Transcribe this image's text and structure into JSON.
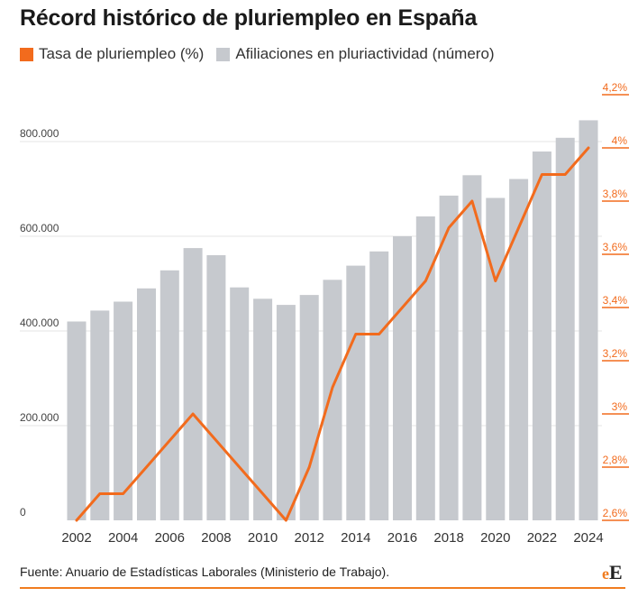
{
  "title": "Récord histórico de pluriempleo en España",
  "legend": {
    "rate_label": "Tasa de pluriempleo (%)",
    "count_label": "Afiliaciones en pluriactividad (número)"
  },
  "colors": {
    "line": "#f26b1d",
    "bar": "#c6c9ce",
    "grid": "#e6e6e6",
    "right_tick": "#f26b1d"
  },
  "source": "Fuente: Anuario de Estadísticas Laborales (Ministerio de Trabajo).",
  "logo": {
    "first": "e",
    "second": "E"
  },
  "chart_data": {
    "type": "bar+line",
    "title": "Récord histórico de pluriempleo en España",
    "x": [
      2002,
      2003,
      2004,
      2005,
      2006,
      2007,
      2008,
      2009,
      2010,
      2011,
      2012,
      2013,
      2014,
      2015,
      2016,
      2017,
      2018,
      2019,
      2020,
      2021,
      2022,
      2023,
      2024
    ],
    "x_tick_labels": [
      "2002",
      "2004",
      "2006",
      "2008",
      "2010",
      "2012",
      "2014",
      "2016",
      "2018",
      "2020",
      "2022",
      "2024"
    ],
    "series": [
      {
        "name": "Afiliaciones en pluriactividad (número)",
        "type": "bar",
        "axis": "left",
        "values": [
          420000,
          443000,
          462000,
          490000,
          528000,
          575000,
          560000,
          492000,
          468000,
          455000,
          476000,
          508000,
          538000,
          568000,
          600000,
          642000,
          686000,
          729000,
          681000,
          721000,
          779000,
          808000,
          845000
        ]
      },
      {
        "name": "Tasa de pluriempleo (%)",
        "type": "line",
        "axis": "right",
        "values": [
          2.6,
          2.7,
          2.7,
          2.8,
          2.9,
          3.0,
          2.9,
          2.8,
          2.7,
          2.6,
          2.8,
          3.1,
          3.3,
          3.3,
          3.4,
          3.5,
          3.7,
          3.8,
          3.5,
          3.7,
          3.9,
          3.9,
          4.0
        ]
      }
    ],
    "y_left": {
      "min": 0,
      "max": 900000,
      "ticks": [
        0,
        200000,
        400000,
        600000,
        800000
      ],
      "tick_labels": [
        "0",
        "200.000",
        "400.000",
        "600.000",
        "800.000"
      ]
    },
    "y_right": {
      "min": 2.6,
      "max": 4.2,
      "ticks": [
        2.6,
        2.8,
        3.0,
        3.2,
        3.4,
        3.6,
        3.8,
        4.0,
        4.2
      ],
      "tick_labels": [
        "2,6%",
        "2,8%",
        "3%",
        "3,2%",
        "3,4%",
        "3,6%",
        "3,8%",
        "4%",
        "4,2%"
      ]
    },
    "grid": true,
    "legend_position": "top-left"
  }
}
